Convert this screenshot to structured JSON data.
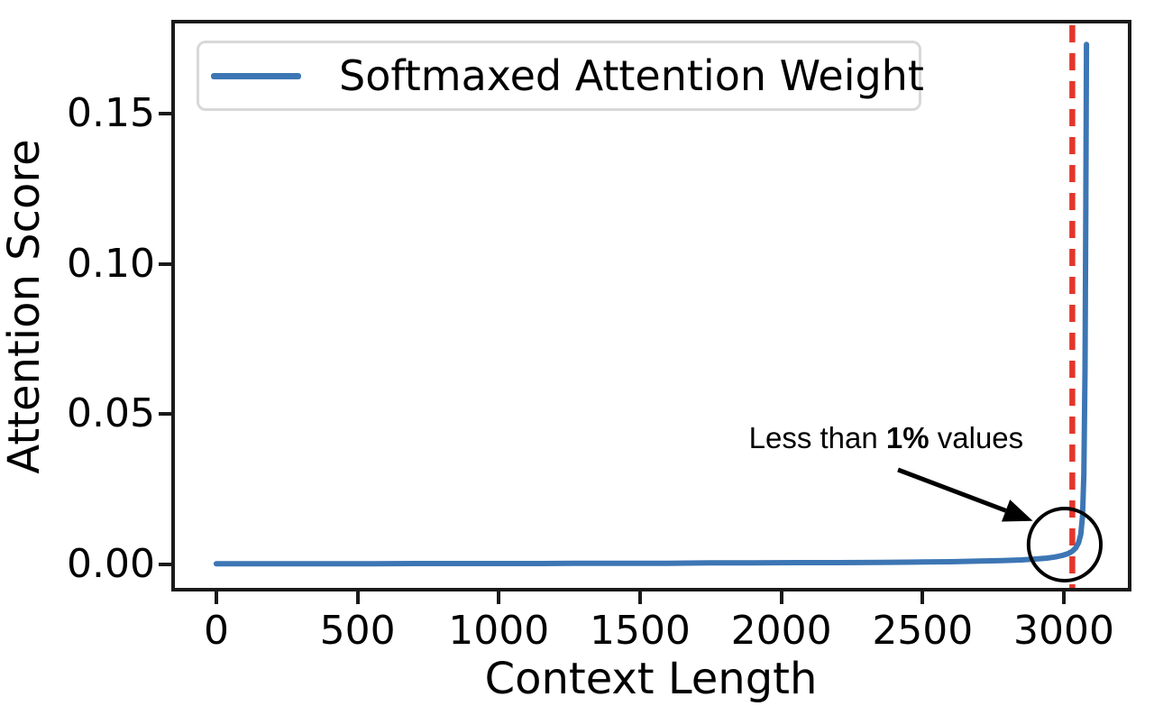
{
  "figure": {
    "xlabel": "Context Length",
    "ylabel": "Attention Score",
    "legend": {
      "label": "Softmaxed Attention Weight"
    },
    "annotation": {
      "prefix": "Less than ",
      "bold": "1%",
      "suffix": " values"
    },
    "colors": {
      "series": "#3d76b4",
      "vline": "#e5352b",
      "axis": "#1a1a1a",
      "annotation": "#000000",
      "legend_border": "#d8d8d8"
    }
  },
  "chart_data": {
    "type": "line",
    "title": "",
    "xlabel": "Context Length",
    "ylabel": "Attention Score",
    "legend_position": "upper left",
    "grid": false,
    "xlim": [
      -153,
      3233
    ],
    "ylim": [
      -0.0084,
      0.1806
    ],
    "x_ticks": {
      "values": [
        0,
        500,
        1000,
        1500,
        2000,
        2500,
        3000
      ],
      "labels": [
        "0",
        "500",
        "1000",
        "1500",
        "2000",
        "2500",
        "3000"
      ]
    },
    "y_ticks": {
      "values": [
        0,
        0.05,
        0.1,
        0.15
      ],
      "labels": [
        "0.00",
        "0.05",
        "0.10",
        "0.15"
      ]
    },
    "series": [
      {
        "name": "Softmaxed Attention Weight",
        "color": "#3d76b4",
        "style": "solid",
        "x": [
          0,
          100,
          250,
          400,
          550,
          700,
          850,
          1000,
          1150,
          1300,
          1450,
          1600,
          1750,
          1900,
          2050,
          2200,
          2350,
          2500,
          2600,
          2700,
          2780,
          2850,
          2900,
          2940,
          2970,
          2995,
          3015,
          3030,
          3042,
          3052,
          3060,
          3066,
          3071,
          3075,
          3078,
          3080
        ],
        "y": [
          0.0002,
          0.0002,
          0.0002,
          0.0002,
          0.0002,
          0.0003,
          0.0003,
          0.0003,
          0.0003,
          0.0004,
          0.0004,
          0.0004,
          0.0005,
          0.0005,
          0.0006,
          0.0006,
          0.0007,
          0.0008,
          0.0009,
          0.0011,
          0.0013,
          0.0015,
          0.0018,
          0.0021,
          0.0025,
          0.003,
          0.0036,
          0.0044,
          0.0055,
          0.0072,
          0.01,
          0.016,
          0.03,
          0.065,
          0.12,
          0.173
        ]
      }
    ],
    "annotations": {
      "vline": {
        "x": 3030,
        "color": "#e5352b",
        "style": "dashed"
      },
      "ellipse": {
        "cx": 3003,
        "cy": 0.0066,
        "rx": 128,
        "ry": 0.012,
        "color": "#000000"
      },
      "arrow": {
        "from": [
          2413,
          0.0315
        ],
        "to": [
          2890,
          0.0145
        ],
        "color": "#000000"
      },
      "text": {
        "content": "Less than 1% values",
        "bold_part": "1%",
        "x": 2371,
        "y": 0.042
      }
    }
  }
}
